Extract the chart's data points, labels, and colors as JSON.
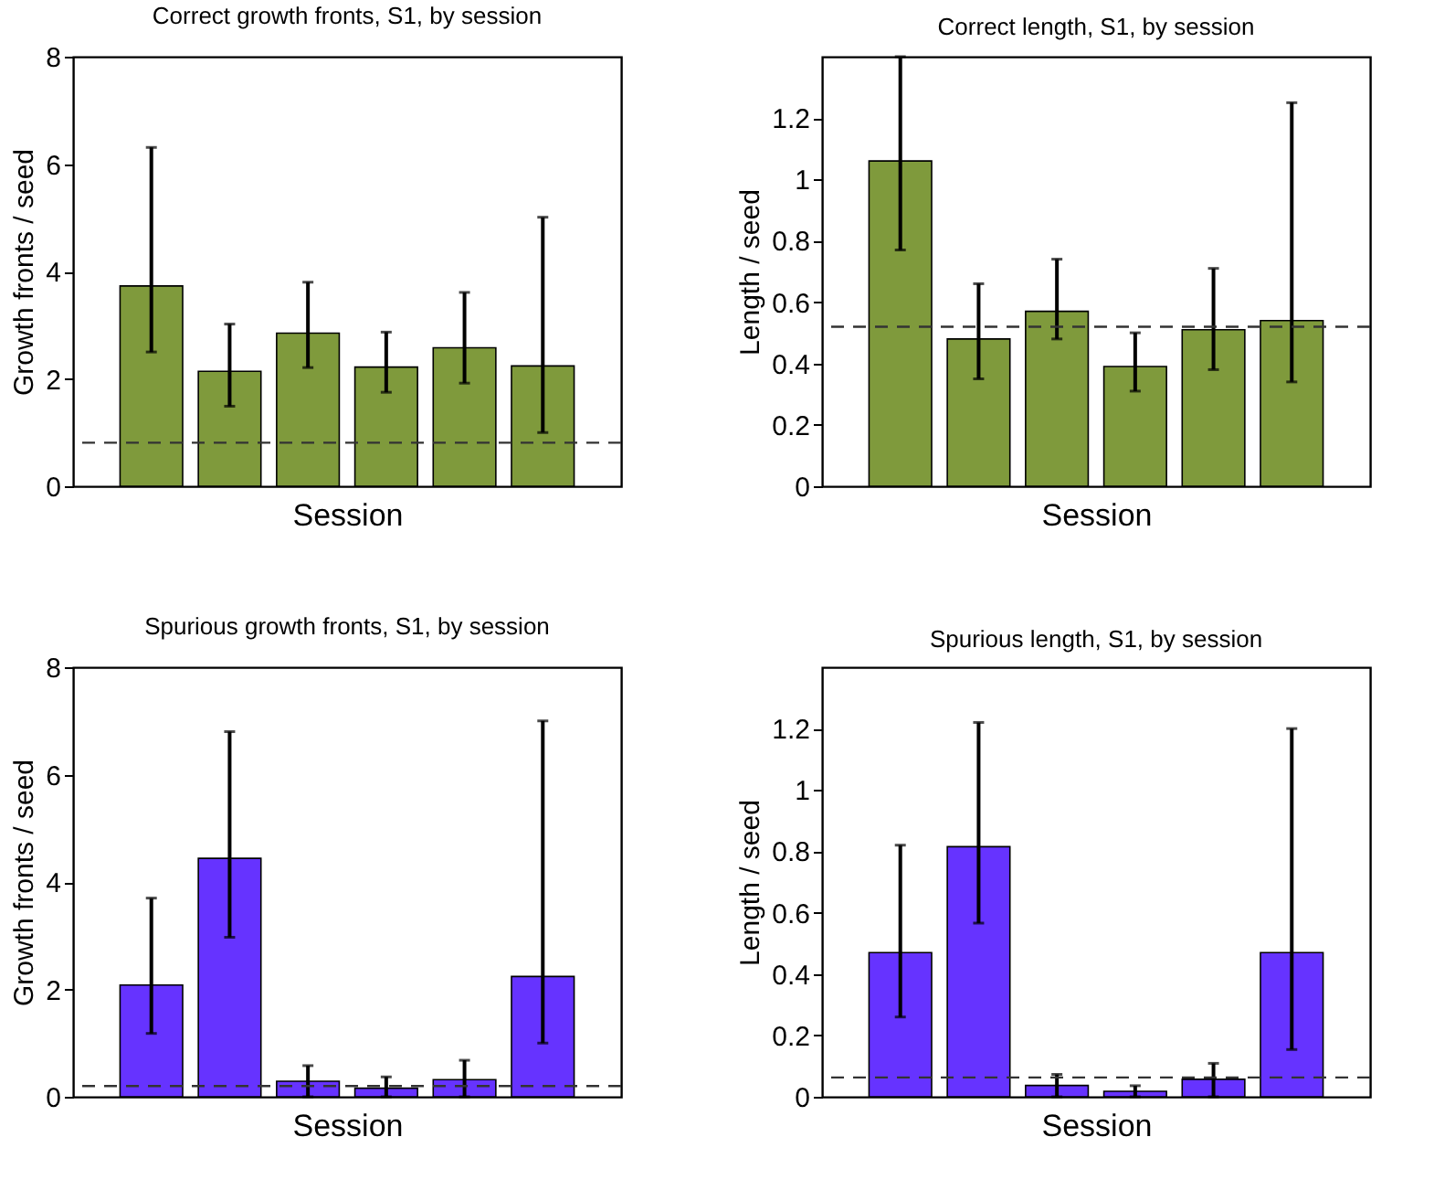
{
  "chart_data": [
    {
      "type": "bar",
      "title": "Correct growth fronts, S1, by session",
      "xlabel": "Session",
      "ylabel": "Growth fronts / seed",
      "categories": [
        null,
        null,
        null,
        null,
        null,
        null
      ],
      "tick_labels": "y",
      "ylim": [
        0,
        8
      ],
      "yticks": [
        0,
        2,
        4,
        6,
        8
      ],
      "grid": false,
      "legend": false,
      "series": [
        {
          "color": "#7f9a3c",
          "values": [
            3.73,
            2.14,
            2.85,
            2.22,
            2.58,
            2.24
          ],
          "errors": [
            [
              2.5,
              6.31
            ],
            [
              1.49,
              3.02
            ],
            [
              2.21,
              3.8
            ],
            [
              1.75,
              2.87
            ],
            [
              1.92,
              3.61
            ],
            [
              1.0,
              5.01
            ]
          ]
        }
      ],
      "ref_lines": [
        {
          "axis": "y",
          "value": 0.81,
          "color": "#333333",
          "line_style": "dashed"
        }
      ]
    },
    {
      "type": "bar",
      "title": "Correct length, S1, by session",
      "xlabel": "Session",
      "ylabel": "Length / seed",
      "categories": [
        null,
        null,
        null,
        null,
        null,
        null
      ],
      "tick_labels": "y",
      "ylim": [
        0,
        1.4
      ],
      "yticks": [
        0,
        0.2,
        0.4,
        0.6,
        0.8,
        1,
        1.2
      ],
      "grid": false,
      "legend": false,
      "series": [
        {
          "color": "#7f9a3c",
          "values": [
            1.06,
            0.48,
            0.57,
            0.39,
            0.51,
            0.54
          ],
          "errors": [
            [
              0.77,
              1.4
            ],
            [
              0.35,
              0.66
            ],
            [
              0.48,
              0.74
            ],
            [
              0.31,
              0.5
            ],
            [
              0.38,
              0.71
            ],
            [
              0.34,
              1.25
            ]
          ]
        }
      ],
      "ref_lines": [
        {
          "axis": "y",
          "value": 0.52,
          "color": "#333333",
          "line_style": "dashed"
        }
      ]
    },
    {
      "type": "bar",
      "title": "Spurious growth fronts, S1, by session",
      "xlabel": "Session",
      "ylabel": "Growth fronts / seed",
      "categories": [
        null,
        null,
        null,
        null,
        null,
        null
      ],
      "tick_labels": "y",
      "ylim": [
        0,
        8
      ],
      "yticks": [
        0,
        2,
        4,
        6,
        8
      ],
      "grid": false,
      "legend": false,
      "series": [
        {
          "color": "#6633ff",
          "values": [
            2.08,
            4.44,
            0.29,
            0.16,
            0.32,
            2.24
          ],
          "errors": [
            [
              1.18,
              3.7
            ],
            [
              2.97,
              6.8
            ],
            [
              0,
              0.58
            ],
            [
              0,
              0.37
            ],
            [
              0,
              0.68
            ],
            [
              1.0,
              7.0
            ]
          ]
        }
      ],
      "ref_lines": [
        {
          "axis": "y",
          "value": 0.2,
          "color": "#333333",
          "line_style": "dashed"
        }
      ]
    },
    {
      "type": "bar",
      "title": "Spurious length, S1, by session",
      "xlabel": "Session",
      "ylabel": "Length / seed",
      "categories": [
        null,
        null,
        null,
        null,
        null,
        null
      ],
      "tick_labels": "y",
      "ylim": [
        0,
        1.4
      ],
      "yticks": [
        0,
        0.2,
        0.4,
        0.6,
        0.8,
        1,
        1.2
      ],
      "grid": false,
      "legend": false,
      "series": [
        {
          "color": "#6633ff",
          "values": [
            0.47,
            0.815,
            0.037,
            0.018,
            0.057,
            0.47
          ],
          "errors": [
            [
              0.26,
              0.82
            ],
            [
              0.566,
              1.22
            ],
            [
              0,
              0.073
            ],
            [
              0,
              0.036
            ],
            [
              0,
              0.109
            ],
            [
              0.154,
              1.2
            ]
          ]
        }
      ],
      "ref_lines": [
        {
          "axis": "y",
          "value": 0.063,
          "color": "#333333",
          "line_style": "dashed"
        }
      ]
    }
  ]
}
